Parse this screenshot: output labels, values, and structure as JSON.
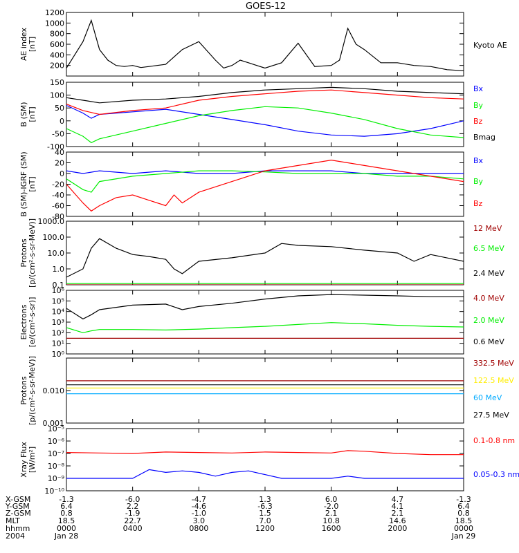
{
  "title": "GOES-12",
  "colors": {
    "black": "#000000",
    "blue": "#0000ff",
    "red": "#ff0000",
    "green": "#00ee00",
    "darkred": "#a00000",
    "yellow": "#ffee00",
    "cyan": "#00aaff"
  },
  "chart_data": [
    {
      "type": "line",
      "ylabel": "AE index\n[nT]",
      "ylim": [
        0,
        1200
      ],
      "log": false,
      "ticks": [
        {
          "v": 200,
          "label": "200"
        },
        {
          "v": 400,
          "label": "400"
        },
        {
          "v": 600,
          "label": "600"
        },
        {
          "v": 800,
          "label": "800"
        },
        {
          "v": 1000,
          "label": "1000"
        },
        {
          "v": 1200,
          "label": "1200"
        }
      ],
      "series": [
        {
          "name": "Kyoto AE",
          "color": "black",
          "x": [
            0,
            0.5,
            1,
            1.5,
            2,
            2.5,
            3,
            3.5,
            4,
            4.5,
            5,
            6,
            7,
            8,
            9,
            9.5,
            10,
            10.5,
            11,
            11.5,
            12,
            13,
            14,
            15,
            16,
            16.5,
            17,
            17.5,
            18,
            19,
            20,
            21,
            22,
            23,
            24
          ],
          "y": [
            150,
            400,
            650,
            1050,
            500,
            300,
            200,
            180,
            200,
            160,
            180,
            220,
            500,
            650,
            300,
            150,
            200,
            300,
            250,
            200,
            150,
            250,
            620,
            180,
            200,
            300,
            900,
            600,
            500,
            250,
            250,
            200,
            180,
            120,
            100
          ]
        }
      ]
    },
    {
      "type": "line",
      "ylabel": "B (SM)\n[nT]",
      "ylim": [
        -100,
        150
      ],
      "log": false,
      "ticks": [
        {
          "v": -100,
          "label": "-100"
        },
        {
          "v": -50,
          "label": "-50"
        },
        {
          "v": 0,
          "label": "0"
        },
        {
          "v": 50,
          "label": "50"
        },
        {
          "v": 100,
          "label": "100"
        },
        {
          "v": 150,
          "label": "150"
        }
      ],
      "series": [
        {
          "name": "Bx",
          "color": "blue",
          "x": [
            0,
            1,
            1.5,
            2,
            4,
            6,
            8,
            10,
            12,
            14,
            16,
            18,
            20,
            22,
            24
          ],
          "y": [
            60,
            30,
            10,
            25,
            35,
            45,
            25,
            5,
            -15,
            -40,
            -55,
            -60,
            -50,
            -30,
            0
          ]
        },
        {
          "name": "By",
          "color": "green",
          "x": [
            0,
            1,
            1.5,
            2,
            4,
            6,
            8,
            10,
            12,
            14,
            16,
            18,
            20,
            22,
            24
          ],
          "y": [
            -30,
            -60,
            -85,
            -70,
            -40,
            -10,
            20,
            40,
            55,
            50,
            30,
            5,
            -30,
            -55,
            -65
          ]
        },
        {
          "name": "Bz",
          "color": "red",
          "x": [
            0,
            1,
            2,
            4,
            6,
            8,
            10,
            12,
            14,
            16,
            18,
            20,
            22,
            24
          ],
          "y": [
            65,
            40,
            25,
            40,
            50,
            80,
            95,
            105,
            115,
            120,
            110,
            100,
            90,
            85
          ]
        },
        {
          "name": "Bmag",
          "color": "black",
          "x": [
            0,
            1,
            2,
            4,
            6,
            8,
            10,
            12,
            14,
            16,
            18,
            20,
            22,
            24
          ],
          "y": [
            90,
            80,
            70,
            80,
            85,
            95,
            110,
            120,
            125,
            130,
            125,
            115,
            110,
            105
          ]
        }
      ]
    },
    {
      "type": "line",
      "ylabel": "B (SM)-IGRF (SM)\n[nT]",
      "ylim": [
        -80,
        40
      ],
      "log": false,
      "ticks": [
        {
          "v": -80,
          "label": "-80"
        },
        {
          "v": -60,
          "label": "-60"
        },
        {
          "v": -40,
          "label": "-40"
        },
        {
          "v": -20,
          "label": "-20"
        },
        {
          "v": 0,
          "label": "0"
        },
        {
          "v": 20,
          "label": "20"
        },
        {
          "v": 40,
          "label": "40"
        }
      ],
      "series": [
        {
          "name": "Bx",
          "color": "blue",
          "x": [
            0,
            1,
            2,
            4,
            6,
            8,
            10,
            12,
            14,
            16,
            18,
            20,
            22,
            24
          ],
          "y": [
            5,
            0,
            5,
            0,
            5,
            0,
            0,
            5,
            5,
            5,
            0,
            0,
            0,
            0
          ]
        },
        {
          "name": "By",
          "color": "green",
          "x": [
            0,
            1,
            1.5,
            2,
            4,
            6,
            8,
            10,
            12,
            14,
            16,
            18,
            20,
            22,
            24
          ],
          "y": [
            -10,
            -30,
            -35,
            -15,
            -5,
            0,
            5,
            5,
            3,
            0,
            0,
            0,
            -5,
            -5,
            -10
          ]
        },
        {
          "name": "Bz",
          "color": "red",
          "x": [
            0,
            1,
            1.5,
            2,
            3,
            4,
            5,
            6,
            6.5,
            7,
            8,
            10,
            12,
            14,
            16,
            17,
            18,
            20,
            22,
            24
          ],
          "y": [
            -20,
            -55,
            -70,
            -60,
            -45,
            -40,
            -50,
            -60,
            -40,
            -55,
            -35,
            -15,
            5,
            15,
            25,
            20,
            15,
            5,
            -5,
            -15
          ]
        }
      ]
    },
    {
      "type": "line",
      "ylabel": "Protons\n[p/(cm²-s-sr-MeV)]",
      "ylim": [
        0.1,
        1000
      ],
      "log": true,
      "ticks": [
        {
          "v": 0.1,
          "label": "0.1"
        },
        {
          "v": 1,
          "label": "1.0"
        },
        {
          "v": 10,
          "label": "10.0"
        },
        {
          "v": 100,
          "label": "100.0"
        },
        {
          "v": 1000,
          "label": "1000.0"
        }
      ],
      "series": [
        {
          "name": "12 MeV",
          "color": "darkred",
          "x": [
            0,
            24
          ],
          "y": [
            0.1,
            0.1
          ]
        },
        {
          "name": "6.5 MeV",
          "color": "green",
          "x": [
            0,
            24
          ],
          "y": [
            0.12,
            0.12
          ]
        },
        {
          "name": "2.4 MeV",
          "color": "black",
          "x": [
            0,
            1,
            1.5,
            2,
            3,
            4,
            5,
            6,
            6.5,
            7,
            8,
            10,
            12,
            13,
            14,
            16,
            18,
            20,
            21,
            22,
            24
          ],
          "y": [
            0.3,
            1,
            20,
            80,
            20,
            8,
            6,
            4,
            1,
            0.5,
            3,
            5,
            10,
            40,
            30,
            25,
            15,
            10,
            3,
            8,
            3
          ]
        }
      ]
    },
    {
      "type": "line",
      "ylabel": "Electrons\n[e/(cm²-s-sr)]",
      "ylim": [
        1,
        1000000
      ],
      "log": true,
      "ticks": [
        {
          "v": 1,
          "label": "10⁰"
        },
        {
          "v": 10,
          "label": "10¹"
        },
        {
          "v": 100,
          "label": "10²"
        },
        {
          "v": 1000,
          "label": "10³"
        },
        {
          "v": 10000,
          "label": "10⁴"
        },
        {
          "v": 100000,
          "label": "10⁵"
        },
        {
          "v": 1000000,
          "label": "10⁶"
        }
      ],
      "series": [
        {
          "name": "4.0 MeV",
          "color": "darkred",
          "x": [
            0,
            24
          ],
          "y": [
            30,
            30
          ]
        },
        {
          "name": "2.0 MeV",
          "color": "green",
          "x": [
            0,
            1,
            1.5,
            2,
            4,
            6,
            8,
            10,
            12,
            14,
            16,
            18,
            20,
            22,
            24
          ],
          "y": [
            300,
            100,
            150,
            200,
            200,
            180,
            220,
            300,
            400,
            600,
            900,
            700,
            500,
            400,
            350
          ]
        },
        {
          "name": "0.6 MeV",
          "color": "black",
          "x": [
            0,
            1,
            1.5,
            2,
            4,
            6,
            7,
            8,
            10,
            12,
            14,
            16,
            18,
            20,
            22,
            24
          ],
          "y": [
            20000,
            2000,
            5000,
            15000,
            40000,
            50000,
            15000,
            30000,
            60000,
            150000,
            300000,
            400000,
            350000,
            300000,
            250000,
            250000
          ]
        }
      ]
    },
    {
      "type": "line",
      "ylabel": "Protons\n[p/(cm²-s-sr-MeV)]",
      "ylim": [
        0.001,
        0.1
      ],
      "log": true,
      "ticks": [
        {
          "v": 0.001,
          "label": "0.001"
        },
        {
          "v": 0.01,
          "label": "0.010"
        }
      ],
      "series": [
        {
          "name": "332.5 MeV",
          "color": "darkred",
          "x": [
            0,
            24
          ],
          "y": [
            0.02,
            0.02
          ]
        },
        {
          "name": "122.5 MeV",
          "color": "yellow",
          "x": [
            0,
            24
          ],
          "y": [
            0.012,
            0.012
          ]
        },
        {
          "name": "60 MeV",
          "color": "cyan",
          "x": [
            0,
            24
          ],
          "y": [
            0.008,
            0.008
          ]
        },
        {
          "name": "27.5 MeV",
          "color": "black",
          "x": [
            0,
            24
          ],
          "y": [
            0.015,
            0.015
          ]
        }
      ]
    },
    {
      "type": "line",
      "ylabel": "Xray Flux\n[W/m²]",
      "ylim": [
        1e-10,
        1e-05
      ],
      "log": true,
      "ticks": [
        {
          "v": 1e-10,
          "label": "10⁻¹⁰"
        },
        {
          "v": 1e-09,
          "label": "10⁻⁹"
        },
        {
          "v": 1e-08,
          "label": "10⁻⁸"
        },
        {
          "v": 1e-07,
          "label": "10⁻⁷"
        },
        {
          "v": 1e-06,
          "label": "10⁻⁶"
        },
        {
          "v": 1e-05,
          "label": "10⁻⁵"
        }
      ],
      "series": [
        {
          "name": "0.1-0.8 nm",
          "color": "red",
          "x": [
            0,
            2,
            4,
            6,
            8,
            10,
            12,
            14,
            16,
            17,
            18,
            20,
            22,
            24
          ],
          "y": [
            1.2e-07,
            1.1e-07,
            1e-07,
            1.3e-07,
            1.2e-07,
            1.1e-07,
            1.3e-07,
            1.2e-07,
            1.1e-07,
            1.7e-07,
            1.5e-07,
            1e-07,
            8e-08,
            8e-08
          ]
        },
        {
          "name": "0.05-0.3 nm",
          "color": "blue",
          "x": [
            0,
            4,
            5,
            6,
            7,
            8,
            9,
            10,
            11,
            12,
            13,
            16,
            17,
            18,
            24
          ],
          "y": [
            1e-09,
            1e-09,
            5e-09,
            3e-09,
            4e-09,
            3e-09,
            1.5e-09,
            3e-09,
            4e-09,
            2e-09,
            1e-09,
            1e-09,
            1.5e-09,
            1e-09,
            1e-09
          ]
        }
      ]
    }
  ],
  "x_axis": {
    "row_labels": [
      "X-GSM",
      "Y-GSM",
      "Z-GSM",
      "MLT",
      "hhmm",
      "2004"
    ],
    "columns": [
      {
        "x": 0,
        "vals": [
          "-1.3",
          "6.4",
          "0.8",
          "18.5",
          "0000",
          "Jan 28"
        ]
      },
      {
        "x": 4,
        "vals": [
          "-6.0",
          "2.2",
          "-1.9",
          "22.7",
          "0400",
          ""
        ]
      },
      {
        "x": 8,
        "vals": [
          "-4.7",
          "-4.6",
          "-1.0",
          "3.0",
          "0800",
          ""
        ]
      },
      {
        "x": 12,
        "vals": [
          "1.3",
          "-6.3",
          "1.5",
          "7.0",
          "1200",
          ""
        ]
      },
      {
        "x": 16,
        "vals": [
          "6.0",
          "-2.0",
          "2.1",
          "10.8",
          "1600",
          ""
        ]
      },
      {
        "x": 20,
        "vals": [
          "4.7",
          "4.1",
          "2.1",
          "14.6",
          "2000",
          ""
        ]
      },
      {
        "x": 24,
        "vals": [
          "-1.3",
          "6.4",
          "0.8",
          "18.5",
          "0000",
          "Jan 29"
        ]
      }
    ]
  }
}
